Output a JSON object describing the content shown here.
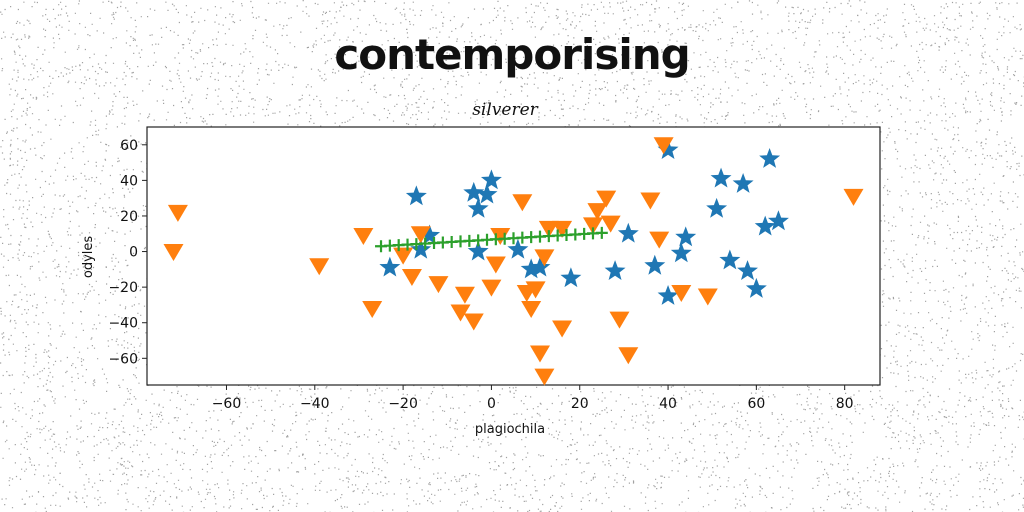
{
  "chart_data": {
    "type": "scatter",
    "title": "contemporising",
    "subtitle": "silverer",
    "xlabel": "plagiochila",
    "ylabel": "odyles",
    "xlim": [
      -78,
      88
    ],
    "ylim": [
      -75,
      70
    ],
    "xticks": [
      -60,
      -40,
      -20,
      0,
      20,
      40,
      60,
      80
    ],
    "yticks": [
      -60,
      -40,
      -20,
      0,
      20,
      40,
      60
    ],
    "grid": false,
    "series": [
      {
        "marker": "star",
        "color": "#1f77b4",
        "points": [
          [
            -17,
            31
          ],
          [
            -14,
            9
          ],
          [
            -23,
            -9
          ],
          [
            -16,
            1
          ],
          [
            -4,
            33
          ],
          [
            -1,
            32
          ],
          [
            0,
            40
          ],
          [
            -3,
            24
          ],
          [
            -3,
            0
          ],
          [
            6,
            1
          ],
          [
            9,
            -10
          ],
          [
            11,
            -9
          ],
          [
            18,
            -15
          ],
          [
            28,
            -11
          ],
          [
            31,
            10
          ],
          [
            37,
            -8
          ],
          [
            40,
            57
          ],
          [
            40,
            -25
          ],
          [
            43,
            -1
          ],
          [
            44,
            8
          ],
          [
            51,
            24
          ],
          [
            52,
            41
          ],
          [
            54,
            -5
          ],
          [
            57,
            38
          ],
          [
            58,
            -11
          ],
          [
            60,
            -21
          ],
          [
            62,
            14
          ],
          [
            63,
            52
          ],
          [
            65,
            17
          ]
        ]
      },
      {
        "marker": "triangle_down",
        "color": "#ff7f0e",
        "points": [
          [
            -71,
            22
          ],
          [
            -72,
            0
          ],
          [
            -39,
            -8
          ],
          [
            -29,
            9
          ],
          [
            -27,
            -32
          ],
          [
            -20,
            -2
          ],
          [
            -18,
            -14
          ],
          [
            -16,
            10
          ],
          [
            -12,
            -18
          ],
          [
            -7,
            -34
          ],
          [
            -6,
            -24
          ],
          [
            -4,
            -39
          ],
          [
            0,
            -20
          ],
          [
            1,
            -7
          ],
          [
            2,
            9
          ],
          [
            7,
            28
          ],
          [
            8,
            -23
          ],
          [
            9,
            -32
          ],
          [
            10,
            -21
          ],
          [
            11,
            -57
          ],
          [
            12,
            -3
          ],
          [
            12,
            -70
          ],
          [
            13,
            13
          ],
          [
            16,
            13
          ],
          [
            16,
            -43
          ],
          [
            23,
            15
          ],
          [
            24,
            23
          ],
          [
            26,
            30
          ],
          [
            27,
            16
          ],
          [
            29,
            -38
          ],
          [
            31,
            -58
          ],
          [
            36,
            29
          ],
          [
            38,
            7
          ],
          [
            39,
            60
          ],
          [
            43,
            -23
          ],
          [
            49,
            -25
          ],
          [
            82,
            31
          ]
        ]
      },
      {
        "marker": "plus",
        "color": "#2ca02c",
        "points": [
          [
            -25,
            3
          ],
          [
            -23,
            3.3
          ],
          [
            -21,
            3.6
          ],
          [
            -19,
            3.9
          ],
          [
            -17,
            4.2
          ],
          [
            -15,
            4.5
          ],
          [
            -13,
            4.8
          ],
          [
            -11,
            5.1
          ],
          [
            -9,
            5.4
          ],
          [
            -7,
            5.7
          ],
          [
            -5,
            6.0
          ],
          [
            -3,
            6.3
          ],
          [
            -1,
            6.6
          ],
          [
            1,
            6.9
          ],
          [
            3,
            7.2
          ],
          [
            5,
            7.5
          ],
          [
            7,
            7.8
          ],
          [
            9,
            8.1
          ],
          [
            11,
            8.4
          ],
          [
            13,
            8.7
          ],
          [
            15,
            9.0
          ],
          [
            17,
            9.3
          ],
          [
            19,
            9.6
          ],
          [
            21,
            9.9
          ],
          [
            23,
            10.2
          ],
          [
            25,
            10.5
          ]
        ]
      }
    ]
  }
}
